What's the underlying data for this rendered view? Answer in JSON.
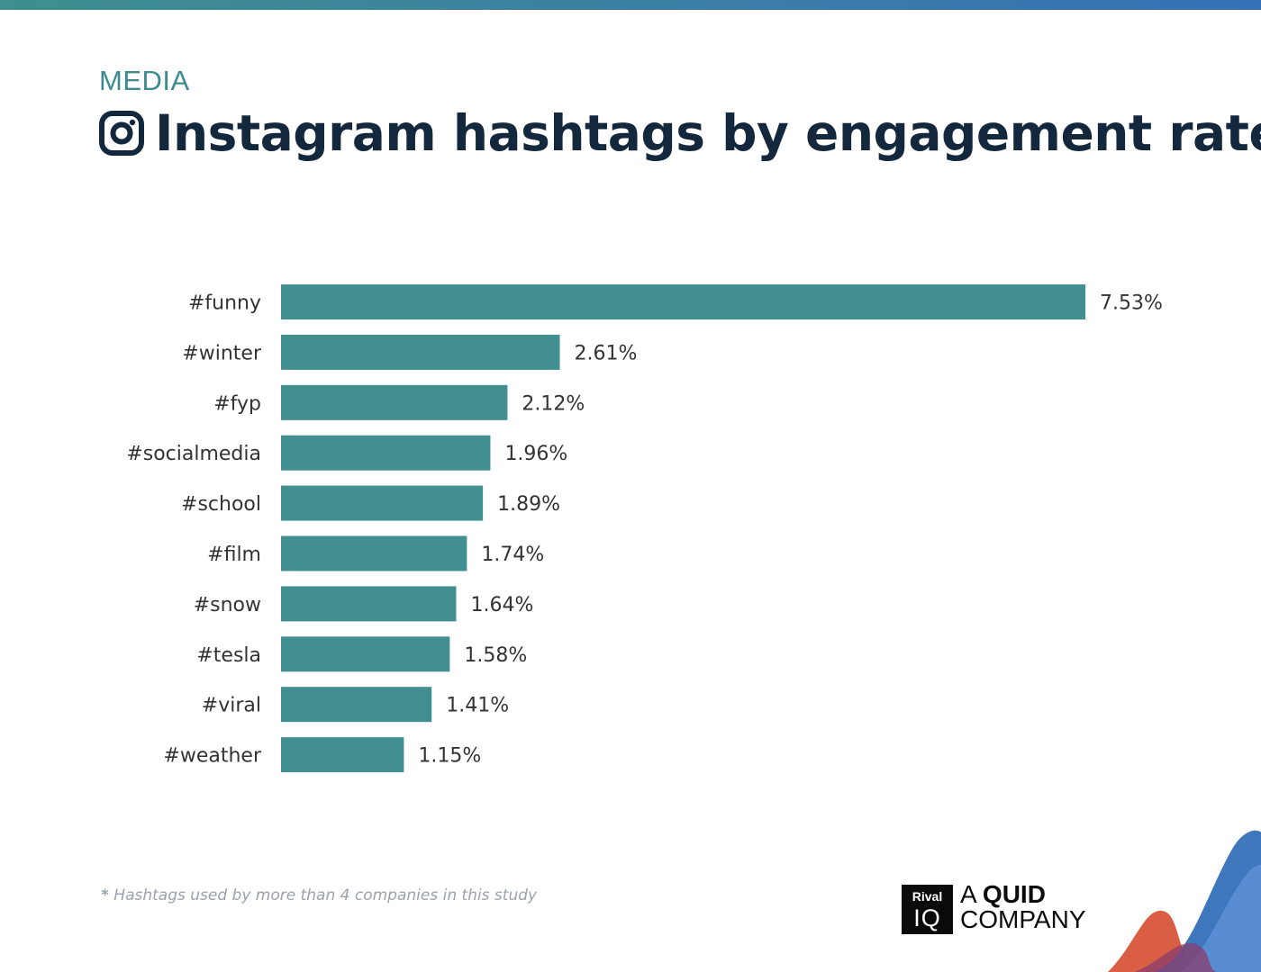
{
  "header": {
    "category": "MEDIA",
    "title": "Instagram hashtags by engagement rate",
    "icon": "instagram-icon"
  },
  "chart_data": {
    "type": "bar",
    "orientation": "horizontal",
    "title": "Instagram hashtags by engagement rate",
    "categories": [
      "#funny",
      "#winter",
      "#fyp",
      "#socialmedia",
      "#school",
      "#film",
      "#snow",
      "#tesla",
      "#viral",
      "#weather"
    ],
    "values": [
      7.53,
      2.61,
      2.12,
      1.96,
      1.89,
      1.74,
      1.64,
      1.58,
      1.41,
      1.15
    ],
    "value_labels": [
      "7.53%",
      "2.61%",
      "2.12%",
      "1.96%",
      "1.89%",
      "1.74%",
      "1.64%",
      "1.58%",
      "1.41%",
      "1.15%"
    ],
    "unit": "%",
    "xlim": [
      0,
      7.53
    ],
    "grid": false,
    "legend": "none",
    "bar_color": "#418f91"
  },
  "footnote": {
    "star": "*",
    "text": "Hashtags used by more than 4 companies in this study"
  },
  "branding": {
    "rival": "Rival",
    "iq": "IQ",
    "line1_a": "A ",
    "line1_b": "QUID",
    "line2": "COMPANY"
  },
  "colors": {
    "accent": "#3d8b8f",
    "title": "#14283d",
    "bar": "#418f91",
    "label": "#333333",
    "footnote": "#9aa3ab"
  }
}
